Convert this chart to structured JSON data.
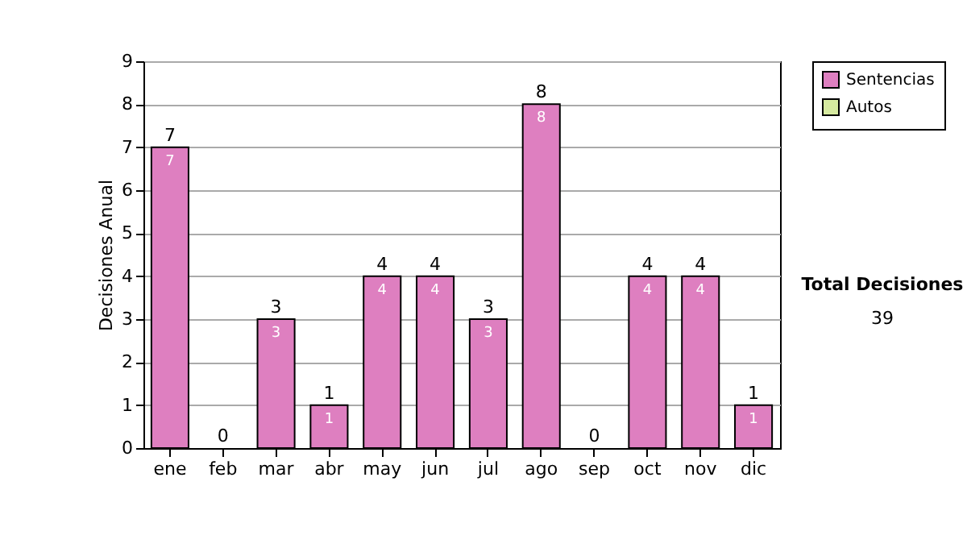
{
  "chart_data": {
    "type": "bar",
    "ylabel": "Decisiones Anual",
    "categories": [
      "ene",
      "feb",
      "mar",
      "abr",
      "may",
      "jun",
      "jul",
      "ago",
      "sep",
      "oct",
      "nov",
      "dic"
    ],
    "series": [
      {
        "name": "Sentencias",
        "color": "#de7fc0",
        "values": [
          7,
          0,
          3,
          1,
          4,
          4,
          3,
          8,
          0,
          4,
          4,
          1
        ],
        "value_labels": [
          "7",
          null,
          "3",
          "1",
          "4",
          "4",
          "3",
          "8",
          null,
          "4",
          "4",
          "1"
        ]
      },
      {
        "name": "Autos",
        "color": "#d6eaa0",
        "values": [
          0,
          0,
          0,
          0,
          0,
          0,
          0,
          0,
          0,
          0,
          0,
          0
        ]
      }
    ],
    "stacked": true,
    "totals": [
      "7",
      "0",
      "3",
      "1",
      "4",
      "4",
      "3",
      "8",
      "0",
      "4",
      "4",
      "1"
    ],
    "ylim": [
      0,
      9
    ],
    "yticks": [
      0,
      1,
      2,
      3,
      4,
      5,
      6,
      7,
      8,
      9
    ],
    "grid": "y",
    "legend": "right",
    "annotations": [
      "Total Decisiones",
      "39"
    ]
  }
}
